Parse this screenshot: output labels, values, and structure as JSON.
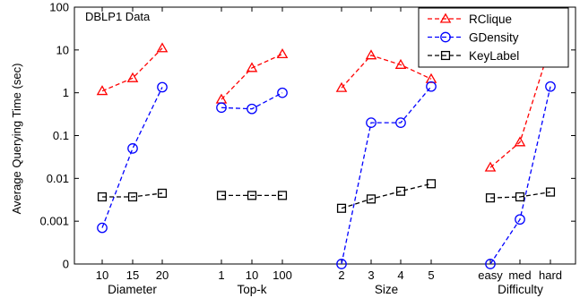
{
  "chart_data": {
    "type": "line",
    "title": "DBLP1 Data",
    "ylabel": "Average Querying Time (sec)",
    "yscale": "log",
    "ylim": [
      0.0001,
      100
    ],
    "yticks": [
      {
        "value": 0.0001,
        "label": "0"
      },
      {
        "value": 0.001,
        "label": "0.001"
      },
      {
        "value": 0.01,
        "label": "0.01"
      },
      {
        "value": 0.1,
        "label": "0.1"
      },
      {
        "value": 1,
        "label": "1"
      },
      {
        "value": 10,
        "label": "10"
      },
      {
        "value": 100,
        "label": "100"
      }
    ],
    "legend_position": "top-right",
    "groups": [
      {
        "name": "Diameter",
        "categories": [
          "10",
          "15",
          "20"
        ]
      },
      {
        "name": "Top-k",
        "categories": [
          "1",
          "10",
          "100"
        ]
      },
      {
        "name": "Size",
        "categories": [
          "2",
          "3",
          "4",
          "5"
        ]
      },
      {
        "name": "Difficulty",
        "categories": [
          "easy",
          "med",
          "hard"
        ]
      }
    ],
    "series": [
      {
        "name": "RClique",
        "color": "#ff0000",
        "marker": "triangle",
        "groups": [
          [
            1.1,
            2.2,
            11
          ],
          [
            0.7,
            3.8,
            8
          ],
          [
            1.3,
            7.5,
            4.5,
            2.1
          ],
          [
            0.018,
            0.07,
            13
          ]
        ]
      },
      {
        "name": "GDensity",
        "color": "#0000ff",
        "marker": "circle",
        "groups": [
          [
            0.0007,
            0.05,
            1.35
          ],
          [
            0.45,
            0.42,
            1.0
          ],
          [
            0.0001,
            0.2,
            0.2,
            1.4
          ],
          [
            0.0001,
            0.0011,
            1.4
          ]
        ]
      },
      {
        "name": "KeyLabel",
        "color": "#000000",
        "marker": "square",
        "groups": [
          [
            0.0037,
            0.0037,
            0.0045
          ],
          [
            0.004,
            0.004,
            0.004
          ],
          [
            0.002,
            0.0033,
            0.005,
            0.0075
          ],
          [
            0.0035,
            0.0037,
            0.0048
          ]
        ]
      }
    ]
  }
}
